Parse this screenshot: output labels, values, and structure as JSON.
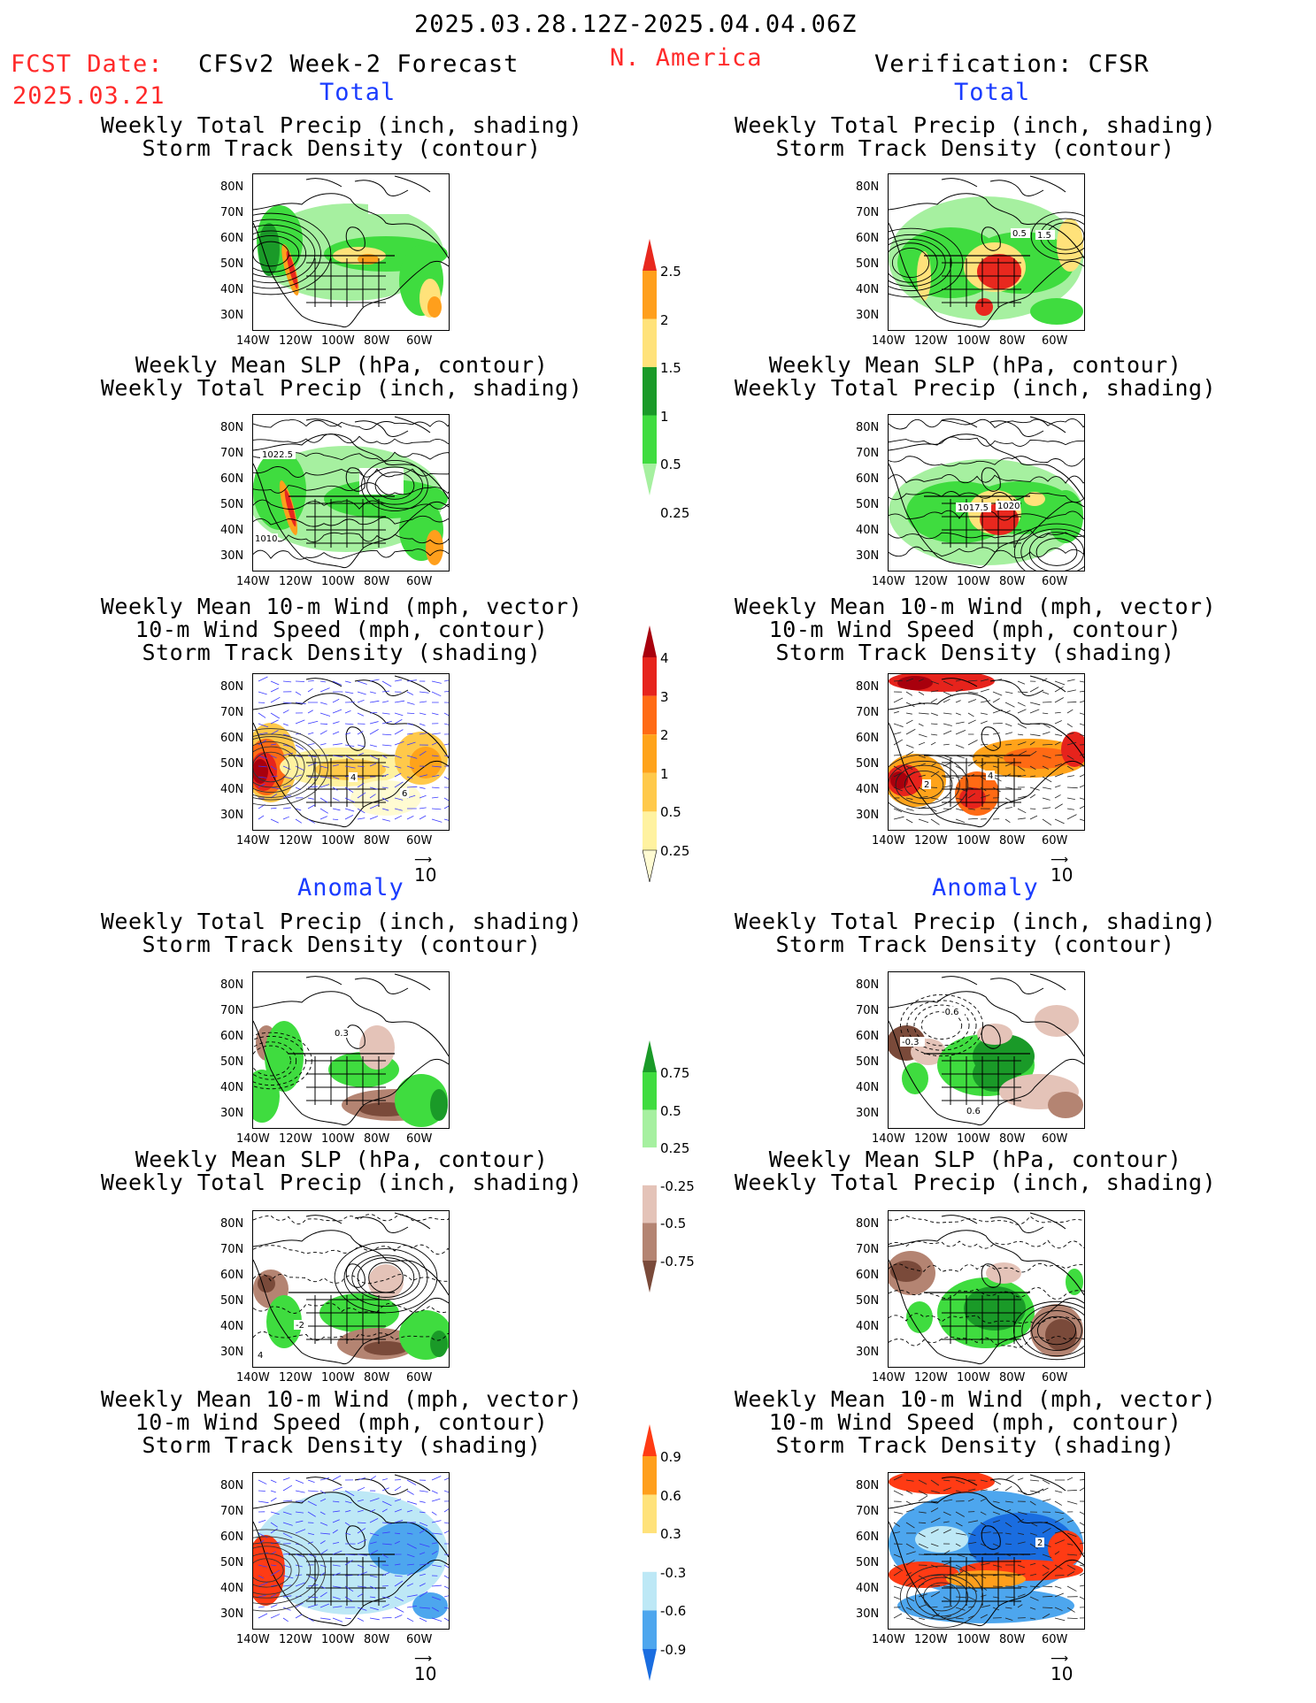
{
  "header": {
    "period": "2025.03.28.12Z-2025.04.04.06Z",
    "fcst_label": "FCST Date:",
    "fcst_date": "2025.03.21",
    "model": "CFSv2 Week-2 Forecast",
    "region": "N. America",
    "verification": "Verification: CFSR"
  },
  "sections": {
    "total": "Total",
    "anomaly": "Anomaly"
  },
  "titles": {
    "precip_track": [
      "Weekly Total Precip (inch, shading)",
      "Storm Track Density (contour)"
    ],
    "slp_precip": [
      "Weekly Mean SLP (hPa, contour)",
      "Weekly Total Precip (inch, shading)"
    ],
    "wind_track": [
      "Weekly Mean 10-m Wind (mph, vector)",
      "10-m Wind Speed (mph, contour)",
      "Storm Track Density (shading)"
    ]
  },
  "axes": {
    "lat_ticks": [
      "80N",
      "70N",
      "60N",
      "50N",
      "40N",
      "30N"
    ],
    "lon_ticks": [
      "140W",
      "120W",
      "100W",
      "80W",
      "60W"
    ]
  },
  "vector_ref": "10",
  "contour_labels": {
    "fc_slp_total": [
      "1022.5",
      "1010"
    ],
    "ob_slp_total": [
      "1017.5",
      "1020"
    ],
    "ob_precip_total": [
      "0.5",
      "1.5"
    ],
    "fc_precip_anom": [
      "0.3"
    ],
    "ob_precip_anom": [
      "-0.3",
      "-0.6",
      "0.6"
    ],
    "fc_slp_anom": [
      "-2",
      "4"
    ],
    "ob_wind_anom": [
      "2"
    ],
    "fc_wind_total": [
      "4",
      "6"
    ],
    "ob_wind_total": [
      "2",
      "4"
    ]
  },
  "colorbars": {
    "precip_total": {
      "labels": [
        "2.5",
        "2",
        "1.5",
        "1",
        "0.5",
        "0.25"
      ],
      "colors": [
        "#e8281e",
        "#ff9f1c",
        "#ffe27a",
        "#1a9a28",
        "#3fdc3f",
        "#a6f0a0"
      ]
    },
    "track_total": {
      "labels": [
        "4",
        "3",
        "2",
        "1",
        "0.5",
        "0.25"
      ],
      "colors": [
        "#a8000d",
        "#e6231c",
        "#ff6a14",
        "#ffa31a",
        "#ffc94a",
        "#fff2a0",
        "#fffbd2"
      ]
    },
    "precip_anom": {
      "labels": [
        "0.75",
        "0.5",
        "0.25",
        "-0.25",
        "-0.5",
        "-0.75"
      ],
      "colors": [
        "#1a9a28",
        "#3fdc3f",
        "#a6f0a0",
        "#ffffff",
        "#e4c3b8",
        "#b48472",
        "#7a4a3a"
      ]
    },
    "track_anom": {
      "labels": [
        "0.9",
        "0.6",
        "0.3",
        "-0.3",
        "-0.6",
        "-0.9"
      ],
      "colors": [
        "#ff3b14",
        "#ff9f1c",
        "#ffe27a",
        "#ffffff",
        "#bde8f6",
        "#4da6ee",
        "#1a6de0"
      ]
    }
  }
}
